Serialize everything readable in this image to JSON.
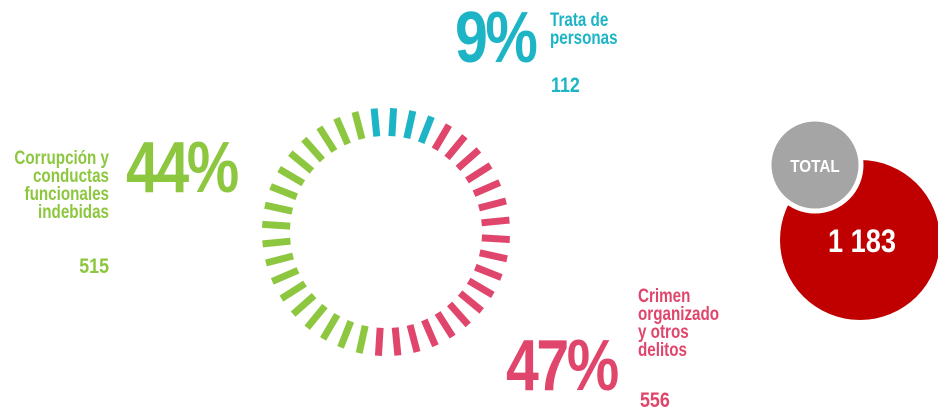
{
  "chart_data": {
    "type": "donut",
    "categories": [
      "Trata de personas",
      "Crimen organizado y otros delitos",
      "Corrupción y conductas funcionales indebidas"
    ],
    "values": [
      9,
      47,
      44
    ],
    "value_labels": [
      "9%",
      "47%",
      "44%"
    ],
    "counts": [
      112,
      556,
      515
    ],
    "colors": [
      "#1db4c6",
      "#e0456b",
      "#8dc63f"
    ],
    "total": {
      "name": "TOTAL",
      "value": 1183,
      "value_label": "1 183",
      "color": "#c00000",
      "name_color": "#a5a5a5"
    }
  }
}
